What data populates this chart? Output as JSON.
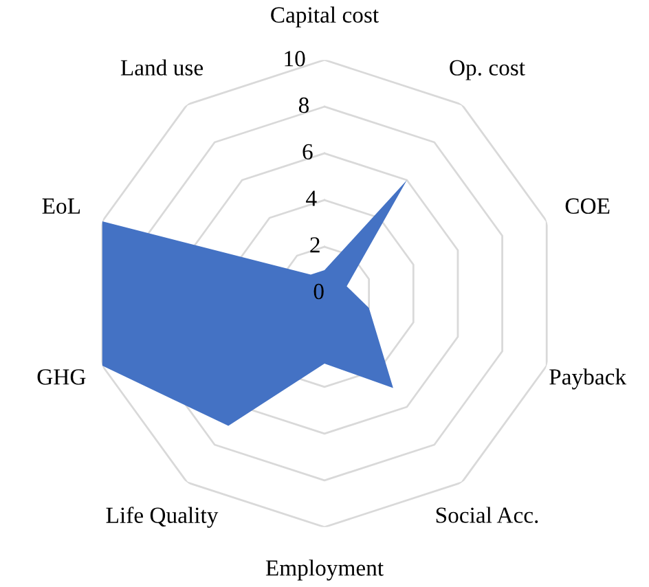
{
  "chart_data": {
    "type": "radar",
    "categories": [
      "Capital cost",
      "Op. cost",
      "COE",
      "Payback",
      "Social Acc.",
      "Employment",
      "Life Quality",
      "GHG",
      "EoL",
      "Land use"
    ],
    "series": [
      {
        "color": "#4472c4",
        "values": [
          1,
          6,
          1,
          2,
          5,
          3,
          7,
          10,
          10,
          1
        ]
      }
    ],
    "ylim": [
      0,
      10
    ],
    "yticks": [
      0,
      2,
      4,
      6,
      8,
      10
    ],
    "grid": true,
    "legend": false
  }
}
